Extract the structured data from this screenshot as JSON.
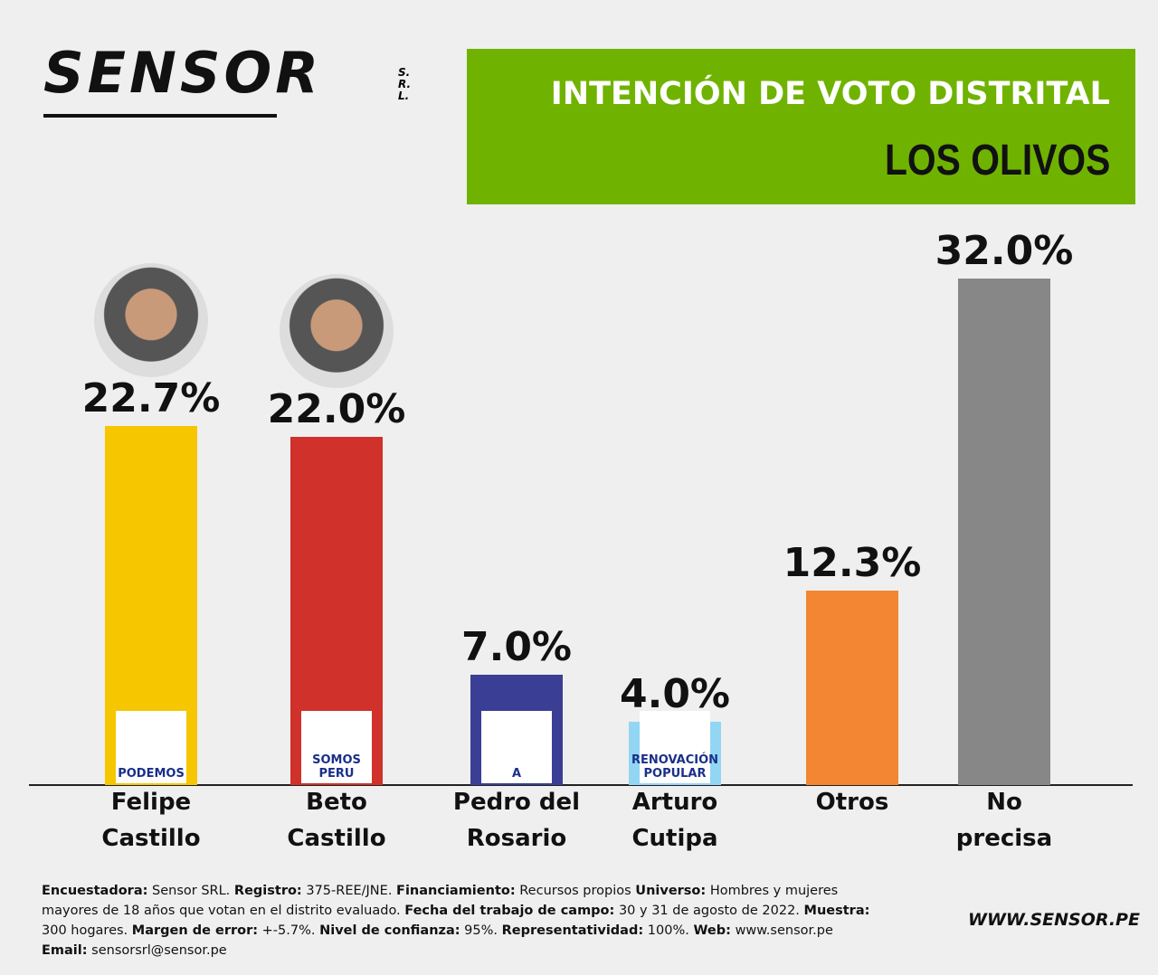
{
  "chart_data": {
    "type": "bar",
    "brand": "SENSOR",
    "brand_suffix": "S.R.L.",
    "title": "INTENCIÓN DE VOTO DISTRITAL",
    "subtitle": "LOS OLIVOS",
    "categories": [
      "Felipe Castillo",
      "Beto Castillo",
      "Pedro del Rosario",
      "Arturo Cutipa",
      "Otros",
      "No precisa"
    ],
    "values": [
      22.7,
      22.0,
      7.0,
      4.0,
      12.3,
      32.0
    ],
    "value_labels": [
      "22.7%",
      "22.0%",
      "7.0%",
      "4.0%",
      "12.3%",
      "32.0%"
    ],
    "colors": [
      "#f6c600",
      "#d0312a",
      "#3a3e94",
      "#92d6f4",
      "#f28633",
      "#878787"
    ],
    "party_logos": [
      "PODEMOS",
      "SOMOS PERU",
      "A",
      "RENOVACIÓN POPULAR",
      null,
      null
    ],
    "footnote": [
      {
        "label": "Encuestadora:",
        "text": "Sensor SRL."
      },
      {
        "label": "Registro:",
        "text": "375-REE/JNE."
      },
      {
        "label": "Financiamiento:",
        "text": "Recursos propios"
      },
      {
        "label": "Universo:",
        "text": "Hombres y mujeres mayores de 18 años que votan en el distrito evaluado."
      },
      {
        "label": "Fecha del trabajo de campo:",
        "text": "30 y 31 de agosto de 2022."
      },
      {
        "label": "Muestra:",
        "text": "300 hogares."
      },
      {
        "label": "Margen de error:",
        "text": "+-5.7%."
      },
      {
        "label": "Nivel de confianza:",
        "text": "95%."
      },
      {
        "label": "Representatividad:",
        "text": "100%."
      },
      {
        "label": "Web:",
        "text": "www.sensor.pe"
      },
      {
        "label": "Email:",
        "text": "sensorsrl@sensor.pe"
      }
    ],
    "website": "WWW.SENSOR.PE"
  }
}
